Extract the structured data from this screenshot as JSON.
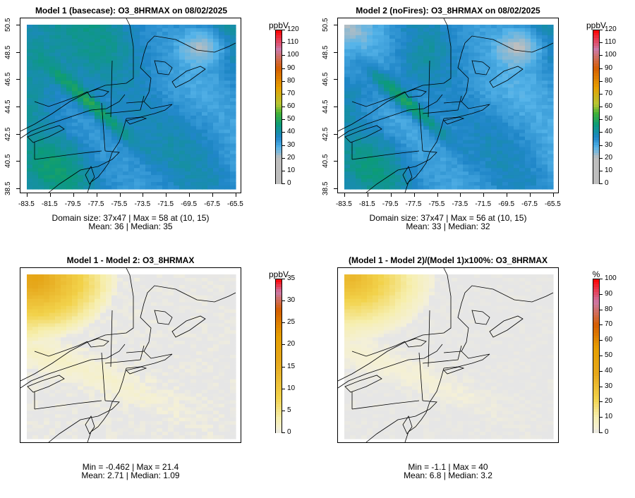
{
  "panels": [
    {
      "title": "Model 1 (basecase): O3_8HRMAX on 08/02/2025",
      "stats": [
        "Domain size: 37x47 | Max = 58 at (10, 15)",
        "Mean: 36 |  Median: 35"
      ],
      "field": "base"
    },
    {
      "title": "Model 2 (noFires): O3_8HRMAX on 08/02/2025",
      "stats": [
        "Domain size: 37x47 | Max = 56 at (10, 15)",
        "Mean: 33 |  Median: 32"
      ],
      "field": "nofire"
    },
    {
      "title": "Model 1 - Model 2: O3_8HRMAX",
      "stats": [
        "Min = -0.462 | Max = 21.4",
        "Mean: 2.71 |  Median: 1.09"
      ],
      "field": "diff"
    },
    {
      "title": "(Model 1 - Model 2)/(Model 1)x100%: O3_8HRMAX",
      "stats": [
        "Min = -1.1 | Max = 40",
        "Mean: 6.8 |  Median: 3.2"
      ],
      "field": "pct"
    }
  ],
  "axes": {
    "lon_ticks": [
      "-83.5",
      "-81.5",
      "-79.5",
      "-77.5",
      "-75.5",
      "-73.5",
      "-71.5",
      "-69.5",
      "-67.5",
      "-65.5"
    ],
    "lat_ticks": [
      "38.5",
      "40.5",
      "42.5",
      "44.5",
      "46.5",
      "48.5",
      "50.5"
    ]
  },
  "colorbars": [
    {
      "unit": "ppbV",
      "ticks": [
        "0",
        "10",
        "20",
        "30",
        "40",
        "50",
        "60",
        "70",
        "80",
        "90",
        "100",
        "110",
        "120"
      ]
    },
    {
      "unit": "ppbV",
      "ticks": [
        "0",
        "10",
        "20",
        "30",
        "40",
        "50",
        "60",
        "70",
        "80",
        "90",
        "100",
        "110",
        "120"
      ]
    },
    {
      "unit": "ppbV",
      "ticks": [
        "0",
        "5",
        "10",
        "15",
        "20",
        "25",
        "30",
        "35"
      ]
    },
    {
      "unit": "%",
      "ticks": [
        "0",
        "10",
        "20",
        "30",
        "40",
        "50",
        "60",
        "70",
        "80",
        "90",
        "100"
      ]
    }
  ],
  "colors": {
    "gray": "#bebebe",
    "light_blue": "#56b4e9",
    "mid_blue": "#1f86c8",
    "teal": "#0b9b79",
    "green": "#45b235",
    "yellow_green": "#b6c634",
    "orange": "#e69f00",
    "dark_orange": "#d55e00",
    "pink": "#cc79a7",
    "red": "#ff0000",
    "diff_zero": "#e6e6e6",
    "diff_low": "#f6efb0",
    "diff_mid": "#f2d24a",
    "diff_high": "#e6a81c"
  }
}
